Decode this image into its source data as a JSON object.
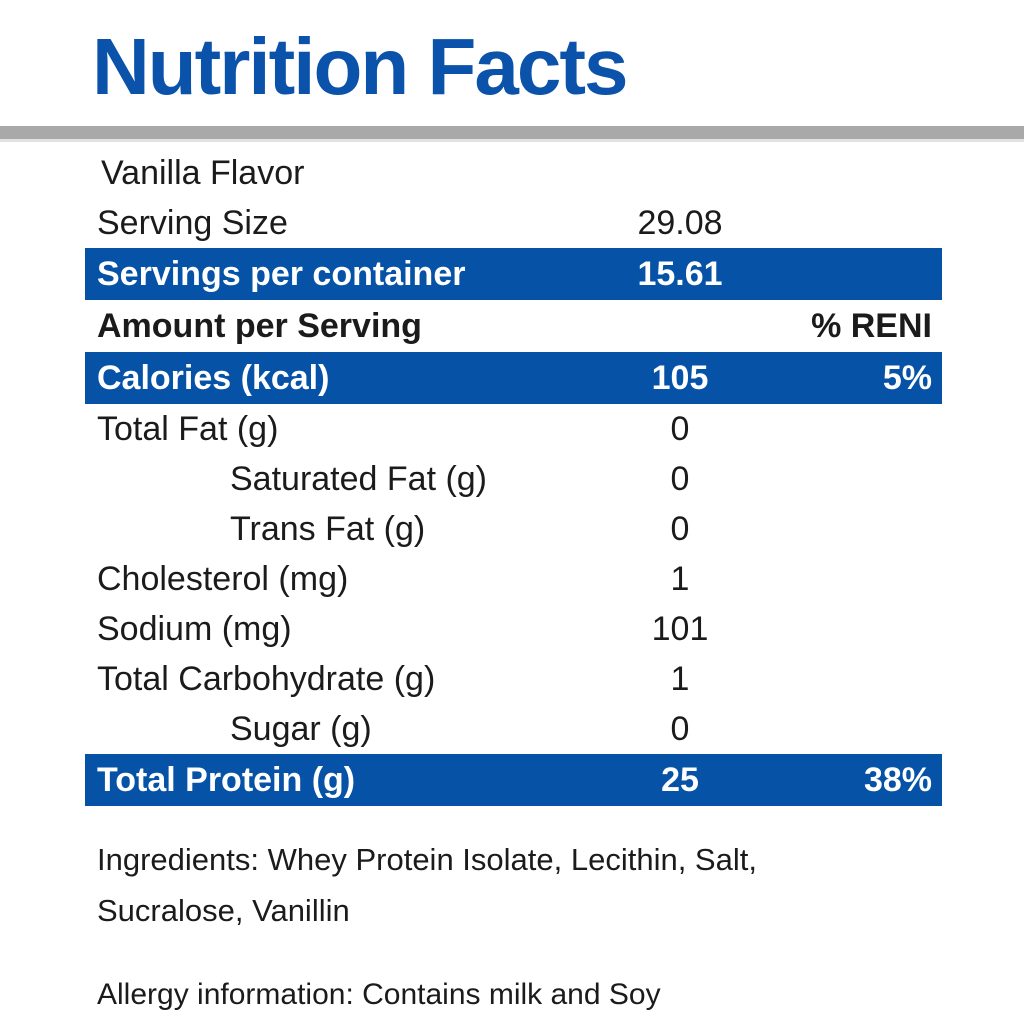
{
  "title": "Nutrition Facts",
  "flavor": "Vanilla Flavor",
  "table": {
    "rows": [
      {
        "label": "Serving Size",
        "value": "29.08",
        "pct": ""
      },
      {
        "label": "Servings per container",
        "value": "15.61",
        "pct": ""
      },
      {
        "label": "Amount per Serving",
        "value": "",
        "pct": "% RENI"
      },
      {
        "label": "Calories (kcal)",
        "value": "105",
        "pct": "5%"
      },
      {
        "label": "Total Fat (g)",
        "value": "0",
        "pct": ""
      },
      {
        "label": "Saturated Fat (g)",
        "value": "0",
        "pct": ""
      },
      {
        "label": "Trans Fat (g)",
        "value": "0",
        "pct": ""
      },
      {
        "label": "Cholesterol (mg)",
        "value": "1",
        "pct": ""
      },
      {
        "label": "Sodium (mg)",
        "value": "101",
        "pct": ""
      },
      {
        "label": "Total Carbohydrate (g)",
        "value": "1",
        "pct": ""
      },
      {
        "label": "Sugar (g)",
        "value": "0",
        "pct": ""
      },
      {
        "label": "Total Protein (g)",
        "value": "25",
        "pct": "38%"
      }
    ]
  },
  "ingredients": "Ingredients: Whey Protein Isolate, Lecithin, Salt, Sucralose, Vanillin",
  "allergy": "Allergy information: Contains milk and Soy",
  "colors": {
    "accent_blue": "#0652a7",
    "title_blue": "#0b52ab",
    "divider_gray": "#a9a9a9",
    "text": "#1b1b1b"
  }
}
